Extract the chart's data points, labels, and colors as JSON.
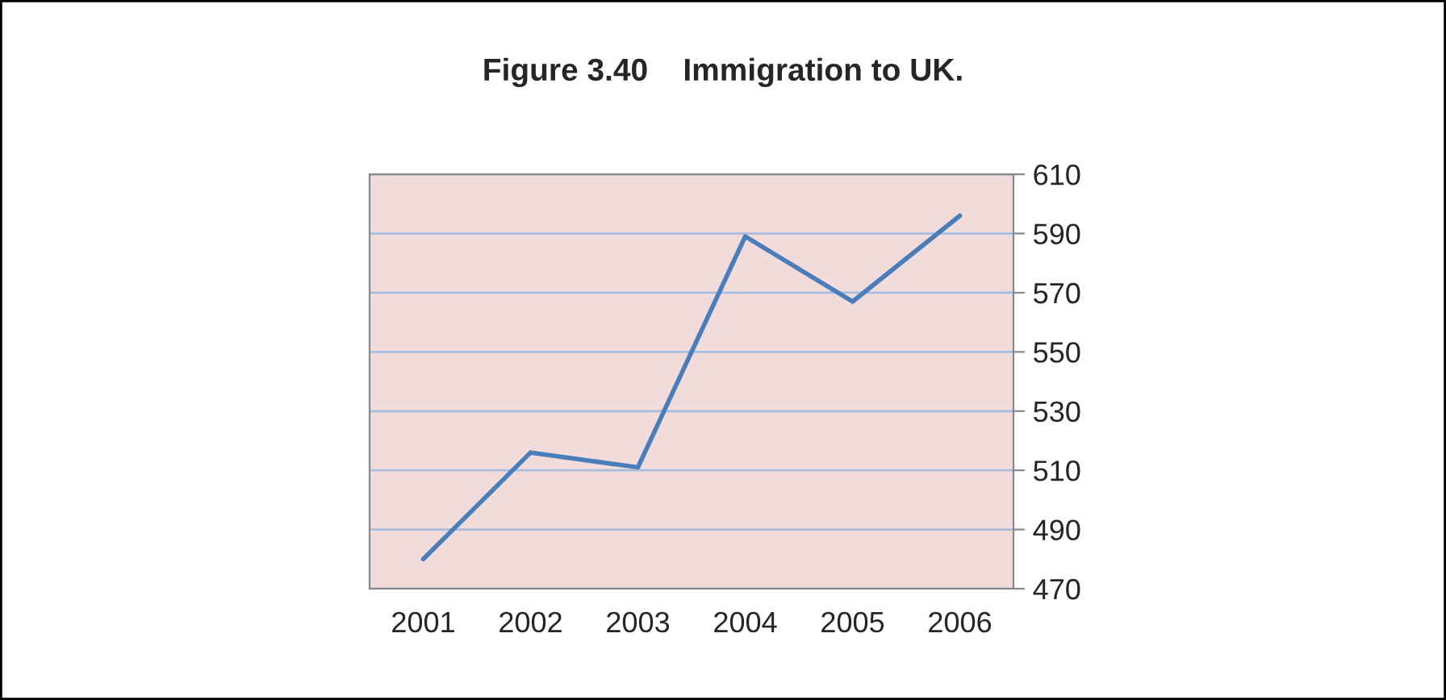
{
  "chart_data": {
    "type": "line",
    "title": "Figure 3.40    Immigration to UK.",
    "categories": [
      "2001",
      "2002",
      "2003",
      "2004",
      "2005",
      "2006"
    ],
    "series": [
      {
        "color": "#4a7ebb",
        "values": [
          480,
          516,
          511,
          589,
          567,
          596
        ]
      }
    ],
    "ylim": [
      470,
      610
    ],
    "yticks": [
      470,
      490,
      510,
      530,
      550,
      570,
      590,
      610
    ],
    "grid": "y",
    "legend": false,
    "marker": "none",
    "line_style": "solid"
  }
}
